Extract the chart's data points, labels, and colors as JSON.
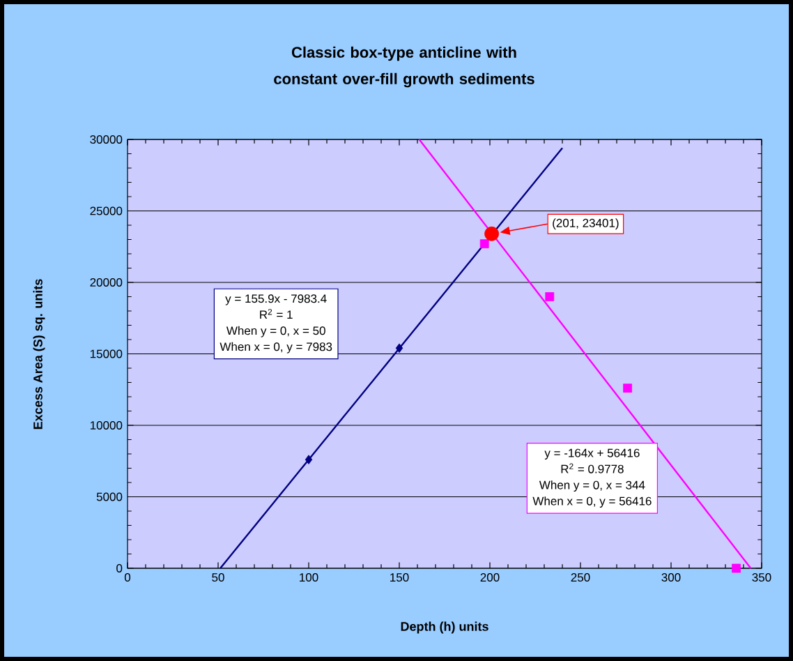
{
  "chart_data": {
    "type": "scatter",
    "title": "Classic box-type anticline with constant over-fill growth sediments",
    "xlabel": "Depth (h) units",
    "ylabel": "Excess Area (S) sq. units",
    "series": [
      {
        "color": "#000080",
        "marker": "diamond",
        "x": [
          100,
          150
        ],
        "values": [
          7600,
          15400
        ]
      },
      {
        "type": "line",
        "color": "#000080",
        "marker": "none",
        "x": [
          51.2,
          240
        ],
        "values": [
          0,
          29400
        ]
      },
      {
        "color": "#ff00ff",
        "marker": "square",
        "x": [
          197,
          233,
          276,
          336
        ],
        "values": [
          22700,
          19000,
          12600,
          0
        ]
      },
      {
        "type": "line",
        "color": "#ff00ff",
        "marker": "none",
        "x": [
          161,
          344
        ],
        "values": [
          30000,
          0
        ]
      },
      {
        "color": "#ff0000",
        "marker": "circle",
        "x": [
          201
        ],
        "values": [
          23400
        ]
      }
    ],
    "annotations": [
      "y = 155.9x - 7983.4",
      "R$^{2}$ = 1",
      "When y = 0, x = 50",
      "When x = 0, y = 7983",
      "y = -164x + 56416",
      "R$^{2}$ = 0.9778",
      "When y = 0, x = 344",
      "When x = 0, y = 56416",
      "(201, 23401)"
    ],
    "xlim": [
      0,
      350
    ],
    "xticks": [
      0,
      50,
      100,
      150,
      200,
      250,
      300,
      350
    ],
    "ylim": [
      0,
      30000
    ],
    "yticks": [
      0,
      5000,
      10000,
      15000,
      20000,
      25000,
      30000
    ],
    "grid": "y"
  }
}
